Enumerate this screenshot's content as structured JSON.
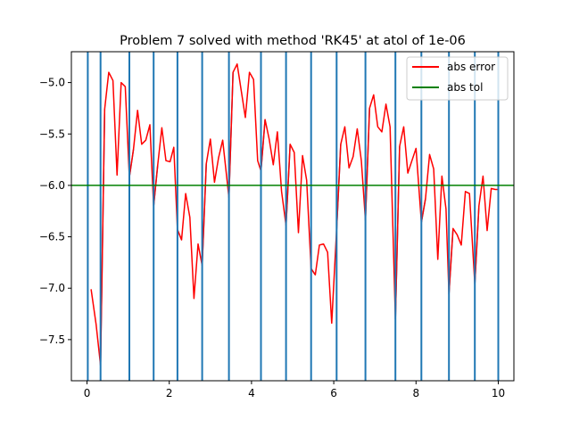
{
  "chart_data": {
    "type": "line",
    "title": "Problem 7 solved with method 'RK45' at atol of 1e-06",
    "xlabel": "",
    "ylabel": "",
    "xlim": [
      -0.38,
      10.38
    ],
    "ylim": [
      -7.9,
      -4.7
    ],
    "xticks": [
      0,
      2,
      4,
      6,
      8,
      10
    ],
    "xtick_labels": [
      "0",
      "2",
      "4",
      "6",
      "8",
      "10"
    ],
    "yticks": [
      -7.5,
      -7.0,
      -6.5,
      -6.0,
      -5.5,
      -5.0
    ],
    "ytick_labels": [
      "−7.5",
      "−7.0",
      "−6.5",
      "−6.0",
      "−5.5",
      "−5.0"
    ],
    "grid": false,
    "legend_position": "top-right",
    "step_boundaries": [
      0.02,
      0.33,
      1.03,
      1.62,
      2.2,
      2.8,
      3.45,
      4.23,
      4.84,
      5.45,
      6.07,
      6.77,
      7.5,
      8.13,
      8.8,
      9.43,
      10.0
    ],
    "series": [
      {
        "name": "abs error",
        "color": "#ff0000",
        "blue_color": "#1f77b4",
        "x": [
          0.1,
          0.22,
          0.33,
          0.43,
          0.53,
          0.63,
          0.73,
          0.83,
          0.93,
          1.03,
          1.13,
          1.23,
          1.33,
          1.43,
          1.53,
          1.62,
          1.72,
          1.82,
          1.92,
          2.02,
          2.11,
          2.2,
          2.3,
          2.4,
          2.5,
          2.6,
          2.7,
          2.8,
          2.9,
          3.0,
          3.1,
          3.2,
          3.3,
          3.45,
          3.55,
          3.65,
          3.75,
          3.85,
          3.95,
          4.05,
          4.15,
          4.23,
          4.33,
          4.43,
          4.53,
          4.63,
          4.73,
          4.84,
          4.94,
          5.04,
          5.14,
          5.24,
          5.34,
          5.45,
          5.55,
          5.65,
          5.75,
          5.85,
          5.95,
          6.07,
          6.17,
          6.27,
          6.37,
          6.47,
          6.57,
          6.67,
          6.77,
          6.87,
          6.97,
          7.07,
          7.17,
          7.27,
          7.37,
          7.5,
          7.6,
          7.7,
          7.8,
          7.9,
          8.0,
          8.13,
          8.23,
          8.33,
          8.43,
          8.53,
          8.63,
          8.73,
          8.8,
          8.9,
          9.0,
          9.1,
          9.2,
          9.3,
          9.43,
          9.53,
          9.63,
          9.73,
          9.83,
          9.93,
          10.0
        ],
        "values": [
          -7.01,
          -7.35,
          -7.75,
          -5.26,
          -4.9,
          -4.98,
          -5.9,
          -5.0,
          -5.04,
          -5.92,
          -5.65,
          -5.27,
          -5.6,
          -5.56,
          -5.41,
          -6.2,
          -5.8,
          -5.44,
          -5.76,
          -5.77,
          -5.63,
          -6.43,
          -6.53,
          -6.08,
          -6.31,
          -7.1,
          -6.57,
          -6.78,
          -5.79,
          -5.55,
          -5.97,
          -5.73,
          -5.56,
          -6.12,
          -4.9,
          -4.82,
          -5.08,
          -5.34,
          -4.9,
          -4.97,
          -5.76,
          -5.86,
          -5.36,
          -5.55,
          -5.8,
          -5.48,
          -6.06,
          -6.39,
          -5.6,
          -5.68,
          -6.46,
          -5.71,
          -5.95,
          -6.81,
          -6.87,
          -6.58,
          -6.57,
          -6.65,
          -7.34,
          -6.43,
          -5.6,
          -5.43,
          -5.83,
          -5.72,
          -5.45,
          -5.76,
          -6.34,
          -5.25,
          -5.12,
          -5.43,
          -5.48,
          -5.21,
          -5.43,
          -7.3,
          -5.62,
          -5.43,
          -5.88,
          -5.76,
          -5.64,
          -6.36,
          -6.13,
          -5.7,
          -5.84,
          -6.72,
          -5.91,
          -6.23,
          -7.06,
          -6.42,
          -6.48,
          -6.58,
          -6.06,
          -6.08,
          -6.96,
          -6.2,
          -5.91,
          -6.44,
          -6.03,
          -6.04,
          -6.04
        ]
      },
      {
        "name": "abs tol",
        "color": "#008000",
        "values": [
          -6.0
        ]
      }
    ]
  }
}
